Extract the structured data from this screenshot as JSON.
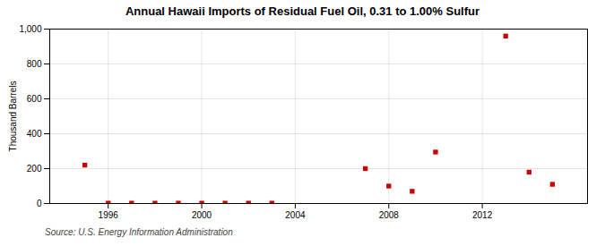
{
  "chart_data": {
    "type": "scatter",
    "title": "Annual Hawaii Imports of Residual Fuel Oil, 0.31 to 1.00% Sulfur",
    "ylabel": "Thousand Barrels",
    "annotations": [
      "Source: U.S. Energy Information Administration"
    ],
    "x": [
      1995,
      1996,
      1997,
      1998,
      1999,
      2000,
      2001,
      2002,
      2003,
      2007,
      2008,
      2009,
      2010,
      2013,
      2014,
      2015
    ],
    "values": [
      220,
      2,
      2,
      2,
      2,
      2,
      2,
      2,
      2,
      200,
      100,
      70,
      295,
      960,
      180,
      110
    ],
    "color": "#cc0000",
    "marker": "square",
    "xlim": [
      1993.5,
      2016.5
    ],
    "xticks": [
      1996,
      2000,
      2004,
      2008,
      2012
    ],
    "ylim": [
      0,
      1000
    ],
    "yticks": [
      0,
      200,
      400,
      600,
      800,
      {
        "value": 1000,
        "label": "1,000"
      }
    ],
    "grid": true
  }
}
